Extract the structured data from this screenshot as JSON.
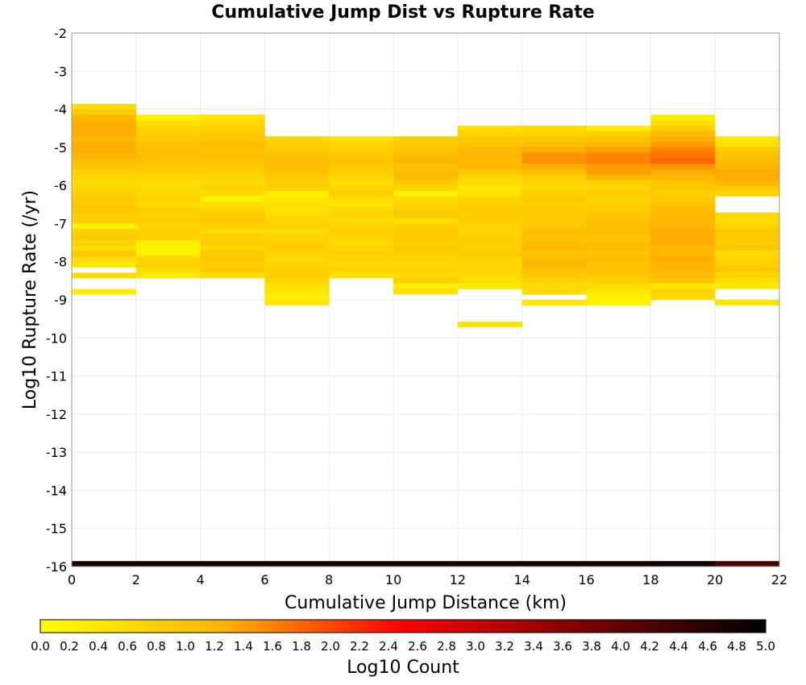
{
  "chart_data": {
    "type": "heatmap",
    "title": "Cumulative Jump Dist vs Rupture Rate",
    "xlabel": "Cumulative Jump Distance (km)",
    "ylabel": "Log10 Rupture Rate (/yr)",
    "xlim": [
      0,
      22
    ],
    "ylim": [
      -16,
      -2
    ],
    "x_ticks": [
      "0",
      "2",
      "4",
      "6",
      "8",
      "10",
      "12",
      "14",
      "16",
      "18",
      "20",
      "22"
    ],
    "y_ticks": [
      "-2",
      "-3",
      "-4",
      "-5",
      "-6",
      "-7",
      "-8",
      "-9",
      "-10",
      "-11",
      "-12",
      "-13",
      "-14",
      "-15",
      "-16"
    ],
    "x_bin_width": 2,
    "y_bin_height": 0.142857,
    "grid": true,
    "colorbar": {
      "label": "Log10 Count",
      "range": [
        0,
        5
      ],
      "ticks": [
        "0.0",
        "0.2",
        "0.4",
        "0.6",
        "0.8",
        "1.0",
        "1.2",
        "1.4",
        "1.6",
        "1.8",
        "2.0",
        "2.2",
        "2.4",
        "2.6",
        "2.8",
        "3.0",
        "3.2",
        "3.4",
        "3.6",
        "3.8",
        "4.0",
        "4.2",
        "4.4",
        "4.6",
        "4.8",
        "5.0"
      ],
      "colors": [
        "#ffff00",
        "#ffb400",
        "#ff0000",
        "#7a0000",
        "#000000"
      ]
    },
    "columns": [
      {
        "x": 0,
        "y_top": -3.86,
        "values": [
          0.6,
          0.9,
          1.2,
          1.3,
          1.3,
          1.3,
          1.2,
          1.3,
          1.3,
          1.2,
          1.1,
          1.0,
          0.8,
          0.7,
          0.6,
          0.7,
          0.8,
          0.9,
          0.9,
          1.0,
          0.8,
          0.8,
          0.2,
          0.8,
          0.9,
          0.7,
          0.6,
          0.9,
          0.6,
          0.4,
          null,
          0.6,
          null,
          null,
          0.3
        ]
      },
      {
        "x": 2,
        "y_top": -4.14,
        "values": [
          0.2,
          0.5,
          0.7,
          0.8,
          0.9,
          1.0,
          1.1,
          1.1,
          1.0,
          0.9,
          0.8,
          0.7,
          0.5,
          0.6,
          0.6,
          0.7,
          0.6,
          0.8,
          0.8,
          0.8,
          0.7,
          0.8,
          0.8,
          0.3,
          0.2,
          0.2,
          0.7,
          0.8,
          0.6,
          0.4
        ]
      },
      {
        "x": 4,
        "y_top": -4.14,
        "values": [
          0.5,
          0.6,
          0.8,
          0.9,
          1.0,
          1.1,
          1.0,
          1.1,
          1.0,
          0.9,
          0.8,
          0.7,
          0.6,
          0.7,
          0.6,
          0.2,
          0.6,
          0.7,
          0.9,
          0.9,
          0.8,
          0.6,
          0.8,
          0.8,
          0.7,
          0.9,
          0.9,
          0.8,
          0.9,
          0.6
        ]
      },
      {
        "x": 6,
        "y_top": -4.71,
        "values": [
          0.7,
          0.8,
          0.9,
          1.0,
          1.1,
          1.1,
          1.0,
          0.9,
          0.8,
          0.8,
          0.3,
          0.4,
          0.5,
          0.5,
          0.6,
          0.7,
          0.8,
          0.6,
          0.7,
          0.8,
          0.8,
          0.7,
          0.6,
          0.7,
          0.8,
          0.8,
          0.7,
          0.5,
          0.4,
          0.3,
          0.4
        ]
      },
      {
        "x": 8,
        "y_top": -4.71,
        "values": [
          0.5,
          0.7,
          0.8,
          0.9,
          1.0,
          0.9,
          0.8,
          0.7,
          0.5,
          0.7,
          0.8,
          0.6,
          0.5,
          0.6,
          0.7,
          0.6,
          0.7,
          0.8,
          0.7,
          0.6,
          0.7,
          0.8,
          0.7,
          0.6,
          0.7,
          0.5
        ]
      },
      {
        "x": 10,
        "y_top": -4.71,
        "values": [
          0.8,
          0.9,
          1.0,
          1.1,
          1.2,
          1.0,
          1.1,
          1.1,
          0.9,
          0.7,
          0.2,
          0.6,
          0.7,
          0.8,
          0.9,
          0.5,
          0.8,
          0.9,
          0.9,
          0.8,
          0.9,
          0.8,
          0.7,
          0.6,
          0.7,
          0.6,
          0.8,
          0.3,
          0.5
        ]
      },
      {
        "x": 12,
        "y_top": -4.43,
        "values": [
          0.5,
          0.7,
          0.9,
          1.0,
          1.2,
          1.2,
          1.1,
          1.2,
          0.9,
          0.7,
          0.6,
          0.4,
          0.5,
          0.7,
          0.8,
          0.9,
          0.8,
          0.8,
          0.7,
          0.7,
          0.8,
          0.8,
          0.8,
          0.9,
          0.7,
          0.7,
          0.7,
          0.6,
          0.5,
          0.4,
          null,
          null,
          null,
          null,
          null,
          null,
          0.5
        ]
      },
      {
        "x": 14,
        "y_top": -4.43,
        "values": [
          0.6,
          0.7,
          0.9,
          1.1,
          1.3,
          1.5,
          1.5,
          1.3,
          1.1,
          0.8,
          0.7,
          0.6,
          0.8,
          0.9,
          0.8,
          0.8,
          0.9,
          0.9,
          0.9,
          1.1,
          1.0,
          1.1,
          1.2,
          1.0,
          1.1,
          1.2,
          1.0,
          0.9,
          0.7,
          0.6,
          0.6,
          null,
          0.4
        ]
      },
      {
        "x": 16,
        "y_top": -4.43,
        "values": [
          0.3,
          0.8,
          1.0,
          1.2,
          1.4,
          1.6,
          1.6,
          1.4,
          1.4,
          1.2,
          0.8,
          0.7,
          0.8,
          0.7,
          0.8,
          0.9,
          1.0,
          1.0,
          1.1,
          1.1,
          1.0,
          1.1,
          1.1,
          1.0,
          1.1,
          1.0,
          1.0,
          0.9,
          0.8,
          0.6,
          0.4,
          0.2,
          0.2
        ]
      },
      {
        "x": 18,
        "y_top": -4.14,
        "values": [
          0.3,
          0.5,
          0.8,
          1.1,
          1.3,
          1.4,
          1.6,
          1.7,
          1.8,
          1.5,
          1.3,
          1.2,
          1.0,
          0.9,
          0.8,
          0.9,
          1.0,
          1.1,
          1.2,
          1.2,
          1.2,
          1.3,
          1.3,
          1.3,
          1.2,
          1.2,
          1.3,
          1.2,
          1.2,
          1.1,
          1.0,
          0.4,
          0.7,
          0.6
        ]
      },
      {
        "x": 20,
        "y_top": -4.71,
        "values": [
          0.4,
          0.5,
          0.9,
          1.0,
          1.1,
          1.2,
          1.3,
          1.3,
          1.2,
          0.9,
          0.7,
          null,
          null,
          null,
          0.6,
          0.6,
          0.7,
          0.9,
          0.9,
          0.8,
          0.9,
          0.6,
          0.7,
          0.8,
          0.9,
          0.7,
          0.5,
          0.4,
          null,
          null,
          0.5
        ]
      }
    ],
    "bottom_band": {
      "y": -16,
      "height": 0.142857,
      "values": [
        4.7,
        4.7,
        4.7,
        4.7,
        4.7,
        4.7,
        4.7,
        4.7,
        4.7,
        4.8,
        4.2
      ]
    }
  }
}
